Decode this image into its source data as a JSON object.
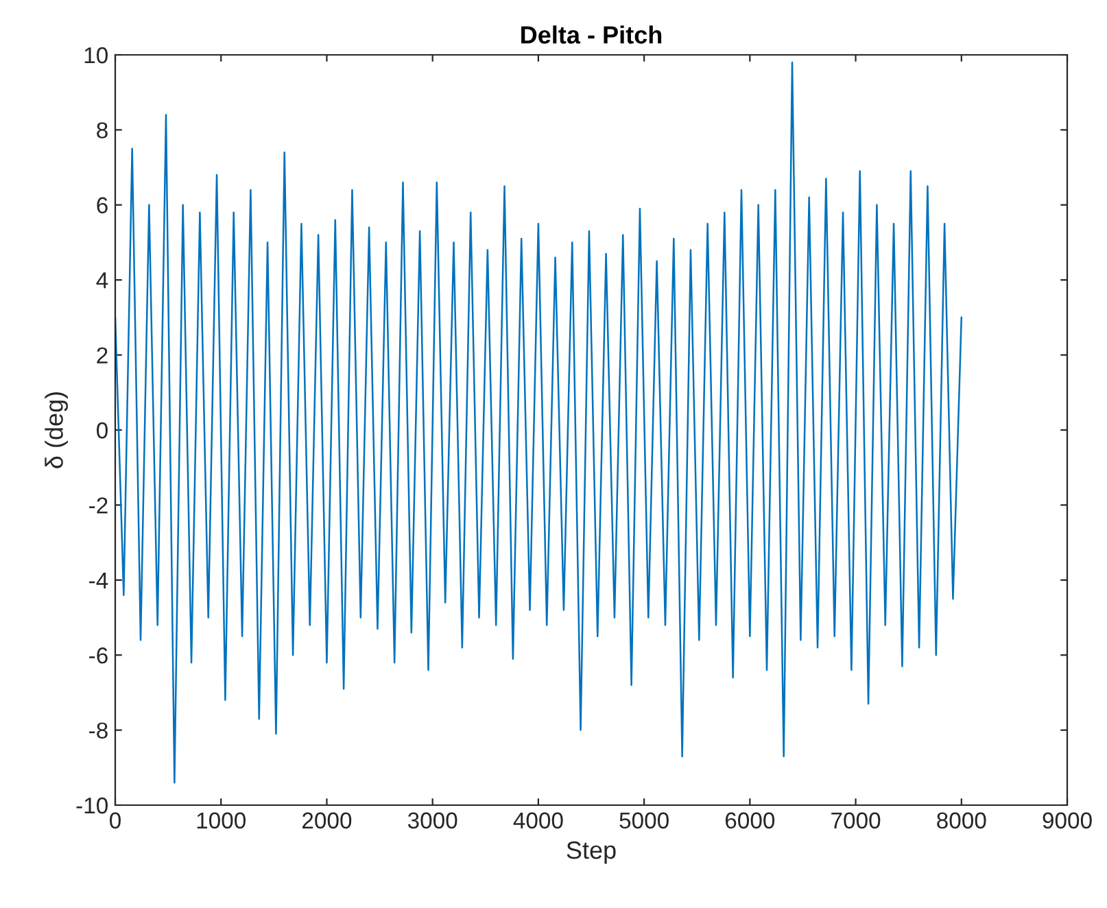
{
  "chart_data": {
    "type": "line",
    "title": "Delta - Pitch",
    "xlabel": "Step",
    "ylabel": "δ (deg)",
    "x": [
      0,
      80,
      160,
      240,
      320,
      400,
      480,
      560,
      640,
      720,
      800,
      880,
      960,
      1040,
      1120,
      1200,
      1280,
      1360,
      1440,
      1520,
      1600,
      1680,
      1760,
      1840,
      1920,
      2000,
      2080,
      2160,
      2240,
      2320,
      2400,
      2480,
      2560,
      2640,
      2720,
      2800,
      2880,
      2960,
      3040,
      3120,
      3200,
      3280,
      3360,
      3440,
      3520,
      3600,
      3680,
      3760,
      3840,
      3920,
      4000,
      4080,
      4160,
      4240,
      4320,
      4400,
      4480,
      4560,
      4640,
      4720,
      4800,
      4880,
      4960,
      5040,
      5120,
      5200,
      5280,
      5360,
      5440,
      5520,
      5600,
      5680,
      5760,
      5840,
      5920,
      6000,
      6080,
      6160,
      6240,
      6320,
      6400,
      6480,
      6560,
      6640,
      6720,
      6800,
      6880,
      6960,
      7040,
      7120,
      7200,
      7280,
      7360,
      7440,
      7520,
      7600,
      7680,
      7760,
      7840,
      7920,
      8000
    ],
    "series": [
      {
        "color": "#0072bd",
        "values": [
          3.0,
          -4.4,
          7.5,
          -5.6,
          6.0,
          -5.2,
          8.4,
          -9.4,
          6.0,
          -6.2,
          5.8,
          -5.0,
          6.8,
          -7.2,
          5.8,
          -5.5,
          6.4,
          -7.7,
          5.0,
          -8.1,
          7.4,
          -6.0,
          5.5,
          -5.2,
          5.2,
          -6.2,
          5.6,
          -6.9,
          6.4,
          -5.0,
          5.4,
          -5.3,
          5.0,
          -6.2,
          6.6,
          -5.4,
          5.3,
          -6.4,
          6.6,
          -4.6,
          5.0,
          -5.8,
          5.8,
          -5.0,
          4.8,
          -5.2,
          6.5,
          -6.1,
          5.1,
          -4.8,
          5.5,
          -5.2,
          4.6,
          -4.8,
          5.0,
          -8.0,
          5.3,
          -5.5,
          4.7,
          -5.0,
          5.2,
          -6.8,
          5.9,
          -5.0,
          4.5,
          -5.2,
          5.1,
          -8.7,
          4.8,
          -5.6,
          5.5,
          -5.2,
          5.8,
          -6.6,
          6.4,
          -5.5,
          6.0,
          -6.4,
          6.4,
          -8.7,
          9.8,
          -5.6,
          6.2,
          -5.8,
          6.7,
          -5.5,
          5.8,
          -6.4,
          6.9,
          -7.3,
          6.0,
          -5.2,
          5.5,
          -6.3,
          6.9,
          -5.8,
          6.5,
          -6.0,
          5.5,
          -4.5,
          3.0
        ]
      }
    ],
    "xlim": [
      0,
      9000
    ],
    "xticks": [
      0,
      1000,
      2000,
      3000,
      4000,
      5000,
      6000,
      7000,
      8000,
      9000
    ],
    "ylim": [
      -10,
      10
    ],
    "yticks": [
      -10,
      -8,
      -6,
      -4,
      -2,
      0,
      2,
      4,
      6,
      8,
      10
    ],
    "grid": false,
    "legend": false
  }
}
